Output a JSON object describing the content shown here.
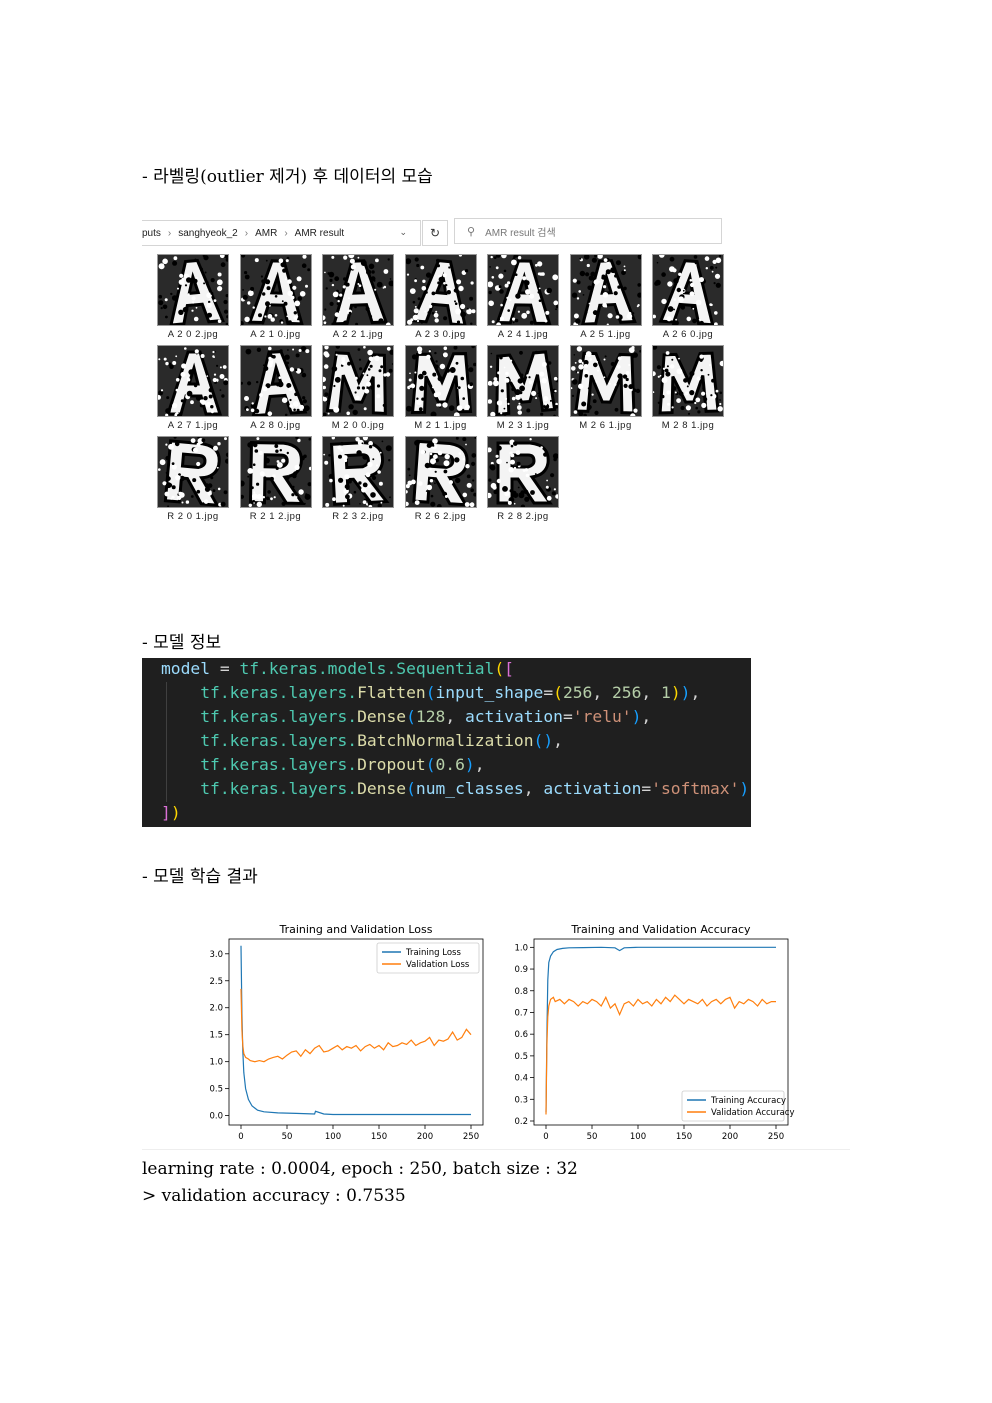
{
  "sections": {
    "labeling_heading": "- 라벨링(outlier 제거) 후 데이터의 모습",
    "model_heading": "- 모델 정보",
    "results_heading": "- 모델 학습 결과"
  },
  "explorer": {
    "breadcrumb": [
      "puts",
      "sanghyeok_2",
      "AMR",
      "AMR result"
    ],
    "search_placeholder": "AMR result 검색",
    "files": [
      {
        "name": "A 2 0 2.jpg",
        "letter": "A"
      },
      {
        "name": "A 2 1 0.jpg",
        "letter": "A"
      },
      {
        "name": "A 2 2 1.jpg",
        "letter": "A"
      },
      {
        "name": "A 2 3 0.jpg",
        "letter": "A"
      },
      {
        "name": "A 2 4 1.jpg",
        "letter": "A"
      },
      {
        "name": "A 2 5 1.jpg",
        "letter": "A"
      },
      {
        "name": "A 2 6 0.jpg",
        "letter": "A"
      },
      {
        "name": "A 2 7 1.jpg",
        "letter": "A"
      },
      {
        "name": "A 2 8 0.jpg",
        "letter": "A"
      },
      {
        "name": "M 2 0 0.jpg",
        "letter": "M"
      },
      {
        "name": "M 2 1 1.jpg",
        "letter": "M"
      },
      {
        "name": "M 2 3 1.jpg",
        "letter": "M"
      },
      {
        "name": "M 2 6 1.jpg",
        "letter": "M"
      },
      {
        "name": "M 2 8 1.jpg",
        "letter": "M"
      },
      {
        "name": "R 2 0 1.jpg",
        "letter": "R"
      },
      {
        "name": "R 2 1 2.jpg",
        "letter": "R"
      },
      {
        "name": "R 2 3 2.jpg",
        "letter": "R"
      },
      {
        "name": "R 2 6 2.jpg",
        "letter": "R"
      },
      {
        "name": "R 2 8 2.jpg",
        "letter": "R"
      }
    ]
  },
  "code": {
    "lines": [
      "model = tf.keras.models.Sequential([",
      "    tf.keras.layers.Flatten(input_shape=(256, 256, 1)),",
      "    tf.keras.layers.Dense(128, activation='relu'),",
      "    tf.keras.layers.BatchNormalization(),",
      "    tf.keras.layers.Dropout(0.6),",
      "    tf.keras.layers.Dense(num_classes, activation='softmax')",
      "])"
    ]
  },
  "chart_data": [
    {
      "type": "line",
      "title": "Training and Validation Loss",
      "xlabel": "",
      "ylabel": "",
      "xlim": [
        0,
        250
      ],
      "ylim": [
        -0.1,
        3.2
      ],
      "xticks": [
        0,
        50,
        100,
        150,
        200,
        250
      ],
      "yticks": [
        0.0,
        0.5,
        1.0,
        1.5,
        2.0,
        2.5,
        3.0
      ],
      "legend": "top-right",
      "series": [
        {
          "name": "Training Loss",
          "color": "#1f77b4",
          "x": [
            0,
            1,
            2,
            3,
            5,
            8,
            12,
            18,
            25,
            40,
            60,
            80,
            81,
            90,
            100,
            130,
            160,
            200,
            250
          ],
          "y": [
            3.15,
            1.9,
            1.2,
            0.8,
            0.5,
            0.3,
            0.18,
            0.1,
            0.07,
            0.05,
            0.04,
            0.03,
            0.08,
            0.03,
            0.02,
            0.02,
            0.02,
            0.02,
            0.02
          ]
        },
        {
          "name": "Validation Loss",
          "color": "#ff7f0e",
          "x": [
            0,
            1,
            2,
            3,
            5,
            8,
            10,
            15,
            20,
            25,
            30,
            35,
            40,
            45,
            50,
            55,
            60,
            65,
            70,
            75,
            80,
            85,
            90,
            95,
            100,
            105,
            110,
            115,
            120,
            125,
            130,
            135,
            140,
            145,
            150,
            155,
            160,
            165,
            170,
            175,
            180,
            185,
            190,
            195,
            200,
            205,
            210,
            215,
            220,
            225,
            230,
            235,
            240,
            245,
            250
          ],
          "y": [
            2.35,
            1.6,
            1.3,
            1.15,
            1.08,
            1.05,
            1.02,
            1.0,
            1.02,
            1.0,
            1.05,
            1.08,
            1.1,
            1.05,
            1.12,
            1.18,
            1.2,
            1.1,
            1.22,
            1.15,
            1.25,
            1.3,
            1.18,
            1.2,
            1.25,
            1.3,
            1.22,
            1.28,
            1.25,
            1.3,
            1.2,
            1.28,
            1.32,
            1.25,
            1.3,
            1.22,
            1.35,
            1.28,
            1.3,
            1.35,
            1.32,
            1.4,
            1.3,
            1.35,
            1.38,
            1.45,
            1.3,
            1.4,
            1.38,
            1.42,
            1.55,
            1.4,
            1.45,
            1.6,
            1.5
          ]
        }
      ]
    },
    {
      "type": "line",
      "title": "Training and Validation Accuracy",
      "xlabel": "",
      "ylabel": "",
      "xlim": [
        0,
        250
      ],
      "ylim": [
        0.2,
        1.02
      ],
      "xticks": [
        0,
        50,
        100,
        150,
        200,
        250
      ],
      "yticks": [
        0.2,
        0.3,
        0.4,
        0.5,
        0.6,
        0.7,
        0.8,
        0.9,
        1.0
      ],
      "legend": "bottom-right",
      "series": [
        {
          "name": "Training Accuracy",
          "color": "#1f77b4",
          "x": [
            0,
            1,
            2,
            3,
            5,
            8,
            12,
            18,
            25,
            40,
            60,
            75,
            80,
            85,
            100,
            150,
            200,
            250
          ],
          "y": [
            0.24,
            0.6,
            0.85,
            0.93,
            0.96,
            0.98,
            0.99,
            0.995,
            0.998,
            0.999,
            1.0,
            0.998,
            0.985,
            0.998,
            1.0,
            1.0,
            1.0,
            1.0
          ]
        },
        {
          "name": "Validation Accuracy",
          "color": "#ff7f0e",
          "x": [
            0,
            1,
            2,
            3,
            5,
            8,
            10,
            15,
            20,
            25,
            30,
            35,
            40,
            45,
            50,
            55,
            60,
            65,
            70,
            75,
            80,
            85,
            90,
            95,
            100,
            105,
            110,
            115,
            120,
            125,
            130,
            135,
            140,
            145,
            150,
            155,
            160,
            165,
            170,
            175,
            180,
            185,
            190,
            195,
            200,
            205,
            210,
            215,
            220,
            225,
            230,
            235,
            240,
            245,
            250
          ],
          "y": [
            0.23,
            0.55,
            0.68,
            0.73,
            0.76,
            0.77,
            0.75,
            0.76,
            0.74,
            0.76,
            0.75,
            0.73,
            0.75,
            0.74,
            0.76,
            0.75,
            0.73,
            0.77,
            0.72,
            0.74,
            0.69,
            0.74,
            0.75,
            0.73,
            0.76,
            0.74,
            0.75,
            0.73,
            0.76,
            0.74,
            0.77,
            0.75,
            0.78,
            0.76,
            0.74,
            0.76,
            0.75,
            0.74,
            0.76,
            0.73,
            0.75,
            0.76,
            0.74,
            0.76,
            0.77,
            0.72,
            0.75,
            0.74,
            0.76,
            0.75,
            0.73,
            0.76,
            0.74,
            0.75,
            0.75
          ]
        }
      ]
    }
  ],
  "results": {
    "params": "learning rate : 0.0004, epoch : 250, batch size : 32",
    "accuracy": "> validation accuracy : 0.7535"
  }
}
